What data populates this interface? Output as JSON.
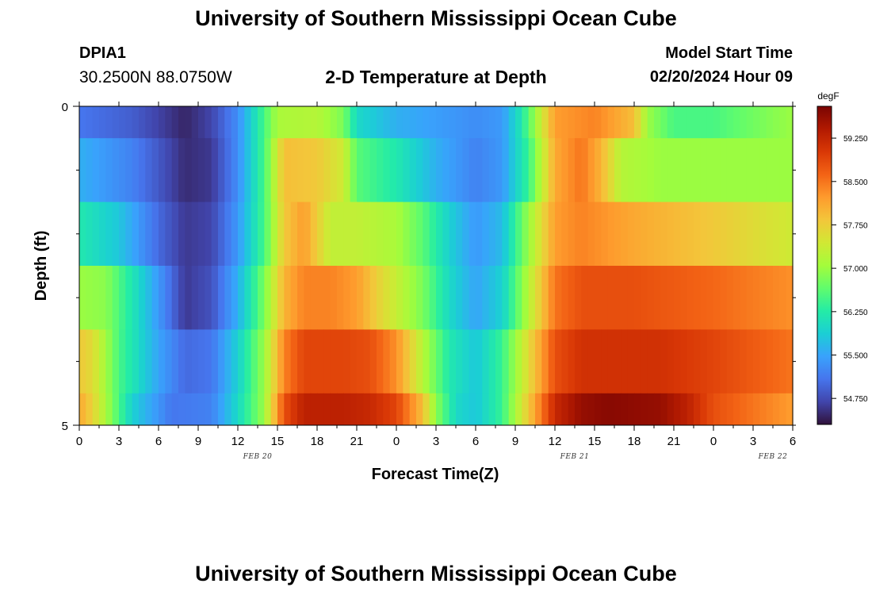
{
  "header": {
    "title": "University of Southern Mississippi Ocean Cube",
    "station": "DPIA1",
    "coordinates": "30.2500N  88.0750W",
    "subtitle": "2-D Temperature at Depth",
    "model_start_label": "Model Start Time",
    "model_start_value": "02/20/2024 Hour 09"
  },
  "footer": {
    "title": "University of Southern Mississippi Ocean Cube"
  },
  "chart_data": {
    "type": "heatmap",
    "title": "2-D Temperature at Depth",
    "xlabel": "Forecast Time(Z)",
    "ylabel": "Depth (ft)",
    "y_ticks": [
      "0",
      "5"
    ],
    "ylim": [
      0,
      5
    ],
    "x_tick_labels": [
      "0",
      "3",
      "6",
      "9",
      "12",
      "15",
      "18",
      "21",
      "0",
      "3",
      "6",
      "9",
      "12",
      "15",
      "18",
      "21",
      "0",
      "3",
      "6"
    ],
    "date_labels": [
      {
        "text": "FEB 20",
        "after_tick": 4
      },
      {
        "text": "FEB 21",
        "after_tick": 12
      },
      {
        "text": "FEB 22",
        "after_tick": 17
      }
    ],
    "x_hours_per_tick": 3,
    "x_start": "FEB 20 00Z",
    "x_end": "FEB 22 06Z",
    "colorbar": {
      "unit": "degF",
      "range": [
        54.3,
        59.8
      ],
      "tick_labels": [
        "59.250",
        "58.500",
        "57.750",
        "57.000",
        "56.250",
        "55.500",
        "54.750"
      ],
      "tick_values": [
        59.25,
        58.5,
        57.75,
        57.0,
        56.25,
        55.5,
        54.75
      ]
    },
    "depth_layers": [
      "0-0.5 ft",
      "0.5-1.5 ft",
      "1.5-2.5 ft",
      "2.5-3.5 ft",
      "3.5-4.5 ft",
      "4.5-5 ft"
    ],
    "temperature_keyframes_by_layer": [
      [
        [
          0,
          55.1
        ],
        [
          4,
          54.9
        ],
        [
          8,
          54.45
        ],
        [
          10,
          54.7
        ],
        [
          12,
          55.3
        ],
        [
          13.5,
          56.2
        ],
        [
          15,
          57.1
        ],
        [
          18,
          57.2
        ],
        [
          20,
          56.8
        ],
        [
          21,
          56.0
        ],
        [
          24,
          55.6
        ],
        [
          30,
          55.3
        ],
        [
          32,
          55.4
        ],
        [
          33.5,
          56.2
        ],
        [
          35,
          57.4
        ],
        [
          36,
          58.2
        ],
        [
          39,
          58.4
        ],
        [
          42,
          57.9
        ],
        [
          43,
          57.0
        ],
        [
          45,
          56.5
        ],
        [
          48,
          56.5
        ],
        [
          54,
          57.0
        ]
      ],
      [
        [
          0,
          55.6
        ],
        [
          4,
          55.2
        ],
        [
          8,
          54.5
        ],
        [
          10,
          54.6
        ],
        [
          12,
          55.3
        ],
        [
          14,
          56.5
        ],
        [
          15.5,
          57.9
        ],
        [
          18,
          57.8
        ],
        [
          20,
          57.4
        ],
        [
          21,
          56.6
        ],
        [
          24,
          56.2
        ],
        [
          27,
          55.6
        ],
        [
          30,
          55.2
        ],
        [
          32,
          55.4
        ],
        [
          34,
          56.4
        ],
        [
          36,
          58.1
        ],
        [
          38,
          58.5
        ],
        [
          39.5,
          58.0
        ],
        [
          41,
          57.2
        ],
        [
          44,
          57.0
        ],
        [
          48,
          57.0
        ],
        [
          54,
          57.0
        ]
      ],
      [
        [
          0,
          56.2
        ],
        [
          3,
          55.8
        ],
        [
          6,
          55.0
        ],
        [
          8,
          54.6
        ],
        [
          10,
          54.7
        ],
        [
          12,
          55.4
        ],
        [
          14,
          56.5
        ],
        [
          15.5,
          57.8
        ],
        [
          17,
          58.2
        ],
        [
          19,
          57.3
        ],
        [
          21,
          57.3
        ],
        [
          24,
          57.1
        ],
        [
          26,
          56.6
        ],
        [
          28,
          55.9
        ],
        [
          30,
          55.4
        ],
        [
          32,
          55.7
        ],
        [
          34,
          57.0
        ],
        [
          36,
          58.2
        ],
        [
          38,
          58.4
        ],
        [
          42,
          58.1
        ],
        [
          48,
          57.8
        ],
        [
          54,
          57.4
        ]
      ],
      [
        [
          0,
          57.0
        ],
        [
          2,
          56.9
        ],
        [
          5,
          55.8
        ],
        [
          8,
          54.6
        ],
        [
          10,
          54.8
        ],
        [
          12,
          55.6
        ],
        [
          14,
          56.8
        ],
        [
          15.5,
          58.0
        ],
        [
          17,
          58.4
        ],
        [
          19,
          58.4
        ],
        [
          21,
          58.2
        ],
        [
          23,
          57.6
        ],
        [
          26,
          56.8
        ],
        [
          28,
          56.0
        ],
        [
          30,
          55.5
        ],
        [
          32,
          55.9
        ],
        [
          34,
          57.2
        ],
        [
          36,
          58.5
        ],
        [
          38,
          58.8
        ],
        [
          42,
          58.8
        ],
        [
          48,
          58.6
        ],
        [
          54,
          58.3
        ]
      ],
      [
        [
          0,
          57.8
        ],
        [
          1,
          57.6
        ],
        [
          3,
          56.5
        ],
        [
          6,
          55.5
        ],
        [
          8,
          55.0
        ],
        [
          10,
          55.1
        ],
        [
          12,
          55.9
        ],
        [
          14,
          57.0
        ],
        [
          15.5,
          58.4
        ],
        [
          17,
          58.9
        ],
        [
          20,
          58.9
        ],
        [
          22,
          58.8
        ],
        [
          24,
          58.3
        ],
        [
          26,
          57.2
        ],
        [
          28,
          56.2
        ],
        [
          30,
          55.8
        ],
        [
          32,
          56.4
        ],
        [
          34,
          57.6
        ],
        [
          36,
          58.8
        ],
        [
          38,
          59.1
        ],
        [
          44,
          59.1
        ],
        [
          48,
          58.9
        ],
        [
          54,
          58.5
        ]
      ],
      [
        [
          0,
          58.1
        ],
        [
          1,
          57.7
        ],
        [
          2.5,
          56.8
        ],
        [
          4,
          55.9
        ],
        [
          7,
          55.1
        ],
        [
          10,
          55.2
        ],
        [
          12,
          56.0
        ],
        [
          14,
          57.0
        ],
        [
          15.5,
          58.8
        ],
        [
          17,
          59.3
        ],
        [
          20,
          59.3
        ],
        [
          22,
          59.2
        ],
        [
          24,
          58.9
        ],
        [
          26,
          57.9
        ],
        [
          27,
          56.9
        ],
        [
          28.5,
          56.0
        ],
        [
          30,
          55.8
        ],
        [
          32,
          56.4
        ],
        [
          34,
          57.8
        ],
        [
          36,
          59.2
        ],
        [
          38,
          59.6
        ],
        [
          40,
          59.7
        ],
        [
          44,
          59.6
        ],
        [
          46,
          59.3
        ],
        [
          48,
          58.8
        ],
        [
          54,
          58.2
        ]
      ]
    ],
    "colormap": [
      "#30123b",
      "#4145ab",
      "#4675ed",
      "#39a2fc",
      "#1bcfd4",
      "#24eca6",
      "#61fc6c",
      "#a4fc3b",
      "#d1e834",
      "#f3c63a",
      "#fe9b2d",
      "#f36315",
      "#d93806",
      "#b11901",
      "#7a0402"
    ]
  }
}
